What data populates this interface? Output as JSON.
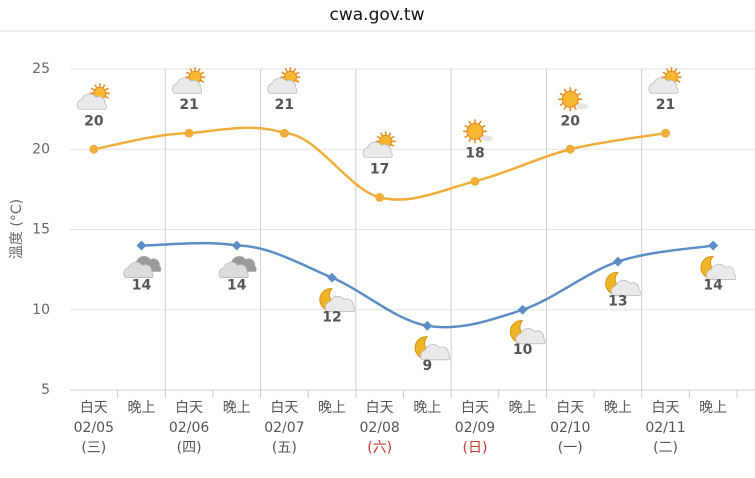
{
  "header": {
    "url": "cwa.gov.tw"
  },
  "chart_data": {
    "type": "line",
    "y_label": "溫度 (°C)",
    "categories": [
      {
        "date": "02/05",
        "weekday": "(三)"
      },
      {
        "date": "02/06",
        "weekday": "(四)"
      },
      {
        "date": "02/07",
        "weekday": "(五)"
      },
      {
        "date": "02/08",
        "weekday": "(六)"
      },
      {
        "date": "02/09",
        "weekday": "(日)"
      },
      {
        "date": "02/10",
        "weekday": "(一)"
      },
      {
        "date": "02/11",
        "weekday": "(二)"
      }
    ],
    "weekday_colors": [
      "#555",
      "#555",
      "#555",
      "#c0392b",
      "#c0392b",
      "#555",
      "#555"
    ],
    "sub_labels": [
      "白天",
      "晚上"
    ],
    "series": [
      {
        "color": "#f0ad3c",
        "marker": "circle",
        "values": [
          20,
          21,
          21,
          17,
          18,
          20,
          21
        ],
        "icons": [
          "sun-cloud",
          "sun-cloud",
          "sun-cloud",
          "sun-cloud",
          "sun",
          "sun",
          "sun-cloud"
        ]
      },
      {
        "color": "#5b8cc4",
        "marker": "diamond",
        "values": [
          14,
          14,
          12,
          9,
          10,
          13,
          14
        ],
        "icons": [
          "cloud",
          "cloud",
          "moon-cloud",
          "moon-cloud",
          "moon-cloud",
          "moon-cloud",
          "moon-cloud"
        ]
      }
    ],
    "ylim": [
      5,
      25
    ],
    "yticks": [
      5,
      10,
      15,
      20,
      25
    ],
    "grid": true
  }
}
